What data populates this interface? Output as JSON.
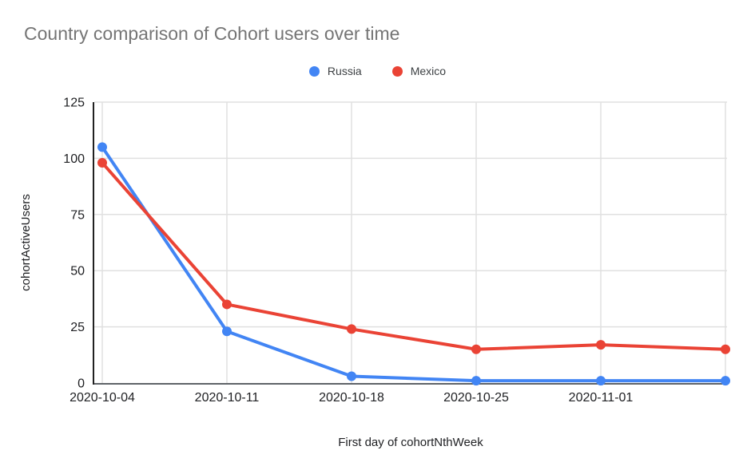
{
  "chart_data": {
    "type": "line",
    "title": "Country comparison of Cohort users over time",
    "xlabel": "First day of cohortNthWeek",
    "ylabel": "cohortActiveUsers",
    "categories": [
      "2020-10-04",
      "2020-10-11",
      "2020-10-18",
      "2020-10-25",
      "2020-11-01",
      ""
    ],
    "series": [
      {
        "name": "Russia",
        "color": "#4285F4",
        "values": [
          105,
          23,
          3,
          1,
          1,
          1
        ]
      },
      {
        "name": "Mexico",
        "color": "#EA4335",
        "values": [
          98,
          35,
          24,
          15,
          17,
          15
        ]
      }
    ],
    "ylim": [
      0,
      125
    ],
    "y_ticks": [
      0,
      25,
      50,
      75,
      100,
      125
    ],
    "grid": true,
    "legend_position": "top-center",
    "colors": {
      "title_text": "#757575",
      "axis_text": "#202124",
      "legend_text": "#3c4043",
      "gridline": "#e0e0e0",
      "y_axis_line": "#212121",
      "x_axis_line": "#5f6368"
    }
  }
}
